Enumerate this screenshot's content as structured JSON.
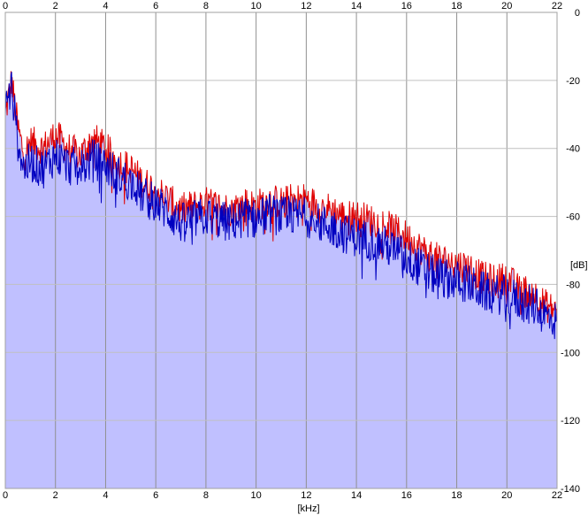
{
  "chart_data": {
    "type": "area",
    "xlabel": "[kHz]",
    "ylabel": "[dB]",
    "xlim": [
      0,
      22
    ],
    "ylim": [
      -140,
      0
    ],
    "x_ticks": [
      0,
      2,
      4,
      6,
      8,
      10,
      12,
      14,
      16,
      18,
      20,
      22
    ],
    "y_ticks": [
      0,
      -20,
      -40,
      -60,
      -80,
      -100,
      -120,
      -140
    ],
    "grid": true,
    "x": [
      0,
      0.25,
      0.5,
      0.75,
      1,
      1.5,
      2,
      2.5,
      3,
      3.5,
      4,
      4.5,
      5,
      5.5,
      6,
      6.5,
      7,
      7.5,
      8,
      8.5,
      9,
      9.5,
      10,
      10.5,
      11,
      11.5,
      12,
      12.5,
      13,
      13.5,
      14,
      14.5,
      15,
      15.5,
      16,
      16.5,
      17,
      17.5,
      18,
      18.5,
      19,
      19.5,
      20,
      20.5,
      21,
      21.5,
      22
    ],
    "series": [
      {
        "color": "#e00000",
        "values": [
          -30,
          -20,
          -34,
          -42,
          -38,
          -40,
          -36,
          -40,
          -42,
          -37,
          -40,
          -44,
          -46,
          -50,
          -52,
          -55,
          -58,
          -57,
          -56,
          -57,
          -58,
          -56,
          -57,
          -55,
          -56,
          -55,
          -55,
          -57,
          -58,
          -60,
          -60,
          -61,
          -62,
          -64,
          -66,
          -69,
          -72,
          -73,
          -74,
          -75,
          -78,
          -79,
          -78,
          -82,
          -82,
          -86,
          -88
        ]
      },
      {
        "color": "#0000c0",
        "values": [
          -28,
          -22,
          -38,
          -46,
          -44,
          -46,
          -42,
          -45,
          -46,
          -43,
          -45,
          -48,
          -50,
          -54,
          -56,
          -59,
          -62,
          -61,
          -60,
          -61,
          -62,
          -60,
          -61,
          -59,
          -60,
          -60,
          -60,
          -62,
          -63,
          -65,
          -66,
          -67,
          -68,
          -70,
          -72,
          -75,
          -77,
          -78,
          -79,
          -80,
          -82,
          -83,
          -83,
          -85,
          -86,
          -89,
          -91
        ]
      }
    ],
    "fill_color": "#c0c0ff",
    "background": "#ffffff",
    "grid_color": "#c0c0c0"
  }
}
